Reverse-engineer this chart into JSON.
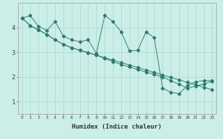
{
  "title": "",
  "xlabel": "Humidex (Indice chaleur)",
  "bg_color": "#cceee8",
  "line_color": "#2e7b6e",
  "grid_color": "#aad4ce",
  "xlim": [
    -0.5,
    23.5
  ],
  "ylim": [
    0.5,
    5.0
  ],
  "yticks": [
    1,
    2,
    3,
    4
  ],
  "xticks": [
    0,
    1,
    2,
    3,
    4,
    5,
    6,
    7,
    8,
    9,
    10,
    11,
    12,
    13,
    14,
    15,
    16,
    17,
    18,
    19,
    20,
    21,
    22,
    23
  ],
  "series1": [
    4.38,
    4.48,
    4.05,
    3.88,
    4.25,
    3.65,
    3.5,
    3.42,
    3.5,
    2.95,
    4.48,
    4.25,
    3.82,
    3.05,
    3.08,
    3.82,
    3.58,
    1.55,
    1.38,
    1.32,
    1.65,
    1.8,
    1.85,
    1.85
  ],
  "series2": [
    4.38,
    4.08,
    3.9,
    3.72,
    3.5,
    3.32,
    3.18,
    3.08,
    2.98,
    2.88,
    2.78,
    2.68,
    2.58,
    2.48,
    2.38,
    2.28,
    2.18,
    2.08,
    1.98,
    1.88,
    1.78,
    1.68,
    1.58,
    1.48
  ],
  "series3": [
    4.38,
    4.08,
    3.9,
    3.72,
    3.5,
    3.32,
    3.18,
    3.08,
    2.98,
    2.88,
    2.75,
    2.62,
    2.5,
    2.4,
    2.3,
    2.2,
    2.1,
    2.0,
    1.85,
    1.7,
    1.55,
    1.62,
    1.72,
    1.82
  ]
}
